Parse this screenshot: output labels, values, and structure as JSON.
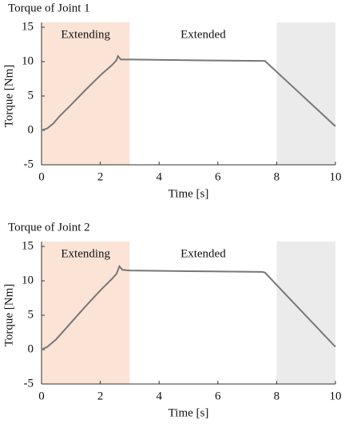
{
  "chart_data": [
    {
      "type": "line",
      "title": "Torque of Joint 1",
      "xlabel": "Time [s]",
      "ylabel": "Torque [Nm]",
      "x": [
        0,
        0.2,
        0.4,
        0.6,
        1,
        1.5,
        2,
        2.4,
        2.55,
        2.6,
        2.7,
        3,
        5,
        7.5,
        7.6,
        10
      ],
      "series": [
        {
          "color": "#777777",
          "values": [
            0,
            0.3,
            1,
            2,
            3.7,
            5.9,
            8,
            9.5,
            10.2,
            10.8,
            10.3,
            10.3,
            10.2,
            10.1,
            10.1,
            0.6
          ]
        }
      ],
      "regions": [
        {
          "label": "Extending",
          "x": [
            0,
            3
          ],
          "color": "#fbe3d6"
        },
        {
          "label": "Extended",
          "x": [
            3,
            8
          ]
        },
        {
          "x": [
            8,
            10
          ],
          "color": "#ebebeb"
        }
      ],
      "xlim": [
        0,
        10
      ],
      "xticks": [
        0,
        2,
        4,
        6,
        8,
        10
      ],
      "ylim": [
        -5,
        15
      ],
      "yticks": [
        -5,
        0,
        5,
        10,
        15
      ]
    },
    {
      "type": "line",
      "title": "Torque of Joint 2",
      "xlabel": "Time [s]",
      "ylabel": "Torque [Nm]",
      "x": [
        0,
        0.2,
        0.5,
        1,
        1.5,
        2,
        2.4,
        2.55,
        2.65,
        2.75,
        3,
        5,
        7.5,
        7.6,
        10
      ],
      "series": [
        {
          "color": "#777777",
          "values": [
            0,
            0.4,
            1.5,
            3.9,
            6.3,
            8.6,
            10.3,
            11,
            12.1,
            11.6,
            11.5,
            11.4,
            11.3,
            11.2,
            0.4
          ]
        }
      ],
      "regions": [
        {
          "label": "Extending",
          "x": [
            0,
            3
          ],
          "color": "#fbe3d6"
        },
        {
          "label": "Extended",
          "x": [
            3,
            8
          ]
        },
        {
          "x": [
            8,
            10
          ],
          "color": "#ebebeb"
        }
      ],
      "xlim": [
        0,
        10
      ],
      "xticks": [
        0,
        2,
        4,
        6,
        8,
        10
      ],
      "ylim": [
        -5,
        15
      ],
      "yticks": [
        -5,
        0,
        5,
        10,
        15
      ]
    }
  ]
}
